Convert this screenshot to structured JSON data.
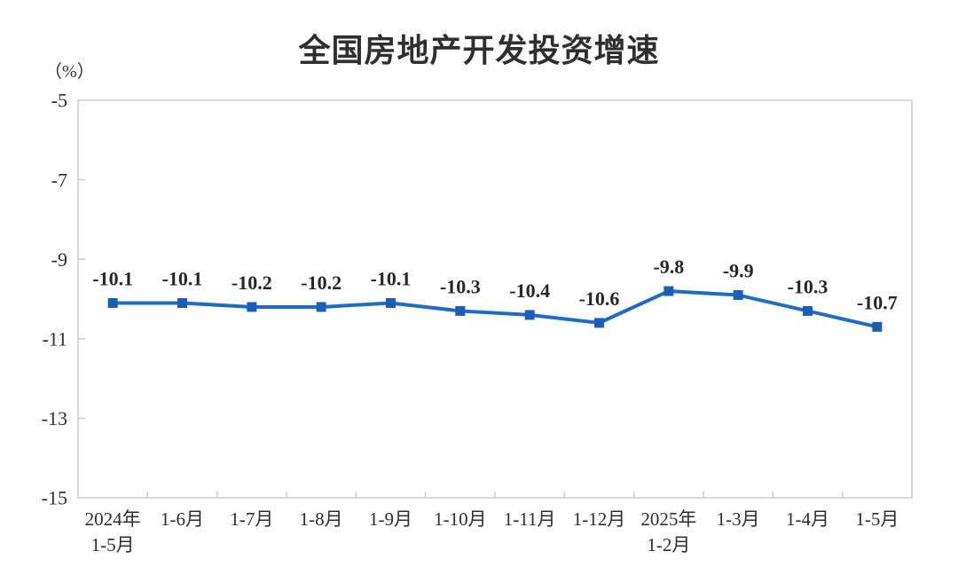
{
  "page": {
    "background": "#ffffff"
  },
  "chart_data": {
    "type": "line",
    "title": "全国房地产开发投资增速",
    "unit_label": "（%）",
    "categories": [
      "2024年\n1-5月",
      "1-6月",
      "1-7月",
      "1-8月",
      "1-9月",
      "1-10月",
      "1-11月",
      "1-12月",
      "2025年\n1-2月",
      "1-3月",
      "1-4月",
      "1-5月"
    ],
    "values": [
      -10.1,
      -10.1,
      -10.2,
      -10.2,
      -10.1,
      -10.3,
      -10.4,
      -10.6,
      -9.8,
      -9.9,
      -10.3,
      -10.7
    ],
    "data_labels": [
      "-10.1",
      "-10.1",
      "-10.2",
      "-10.2",
      "-10.1",
      "-10.3",
      "-10.4",
      "-10.6",
      "-9.8",
      "-9.9",
      "-10.3",
      "-10.7"
    ],
    "xlabel": "",
    "ylabel": "（%）",
    "ylim": [
      -15,
      -5
    ],
    "yticks": [
      -5,
      -7,
      -9,
      -11,
      -13,
      -15
    ],
    "ytick_labels": [
      "-5",
      "-7",
      "-9",
      "-11",
      "-13",
      "-15"
    ],
    "grid": false,
    "legend": "none",
    "series_name": "全国房地产开发投资增速",
    "line_color": "#1f6cc0",
    "marker_color": "#1a5fb4",
    "marker_shape": "square",
    "axis_border_color": "#cccccc",
    "text_color": "#2e2e2e"
  }
}
